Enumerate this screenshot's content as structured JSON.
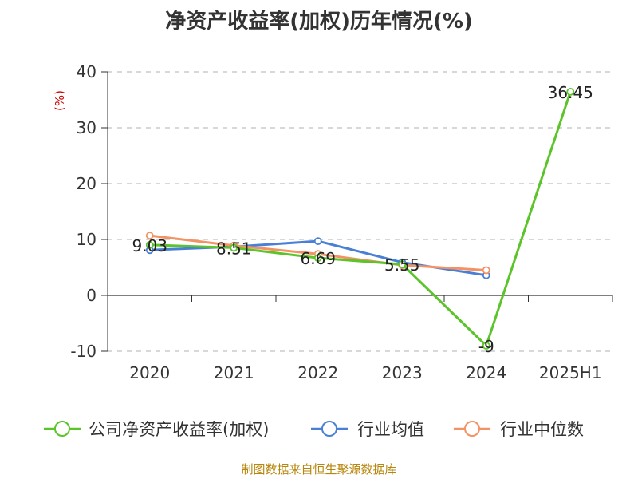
{
  "title": "净资产收益率(加权)历年情况(%)",
  "source": "制图数据来自恒生聚源数据库",
  "colors": {
    "company": "#5ac429",
    "industry_avg": "#4a7fd6",
    "industry_median": "#f39365",
    "grid": "#cccccc",
    "axis": "#333333",
    "unit": "#cc0000"
  },
  "chart_data": {
    "type": "line",
    "title": "净资产收益率(加权)历年情况(%)",
    "ylabel": "(%)",
    "xlabel": "",
    "categories": [
      "2020",
      "2021",
      "2022",
      "2023",
      "2024",
      "2025H1"
    ],
    "ylim": [
      -10,
      40
    ],
    "yticks": [
      -10,
      0,
      10,
      20,
      30,
      40
    ],
    "grid": true,
    "legend": "bottom",
    "series": [
      {
        "name": "公司净资产收益率(加权)",
        "values": [
          9.03,
          8.51,
          6.69,
          5.55,
          -9,
          36.45
        ],
        "data_labels": [
          "9.03",
          "8.51",
          "6.69",
          "5.55",
          "-9",
          "36.45"
        ]
      },
      {
        "name": "行业均值",
        "values": [
          8.1,
          8.7,
          9.7,
          5.9,
          3.6,
          null
        ]
      },
      {
        "name": "行业中位数",
        "values": [
          10.7,
          8.9,
          7.4,
          5.4,
          4.5,
          null
        ]
      }
    ]
  }
}
